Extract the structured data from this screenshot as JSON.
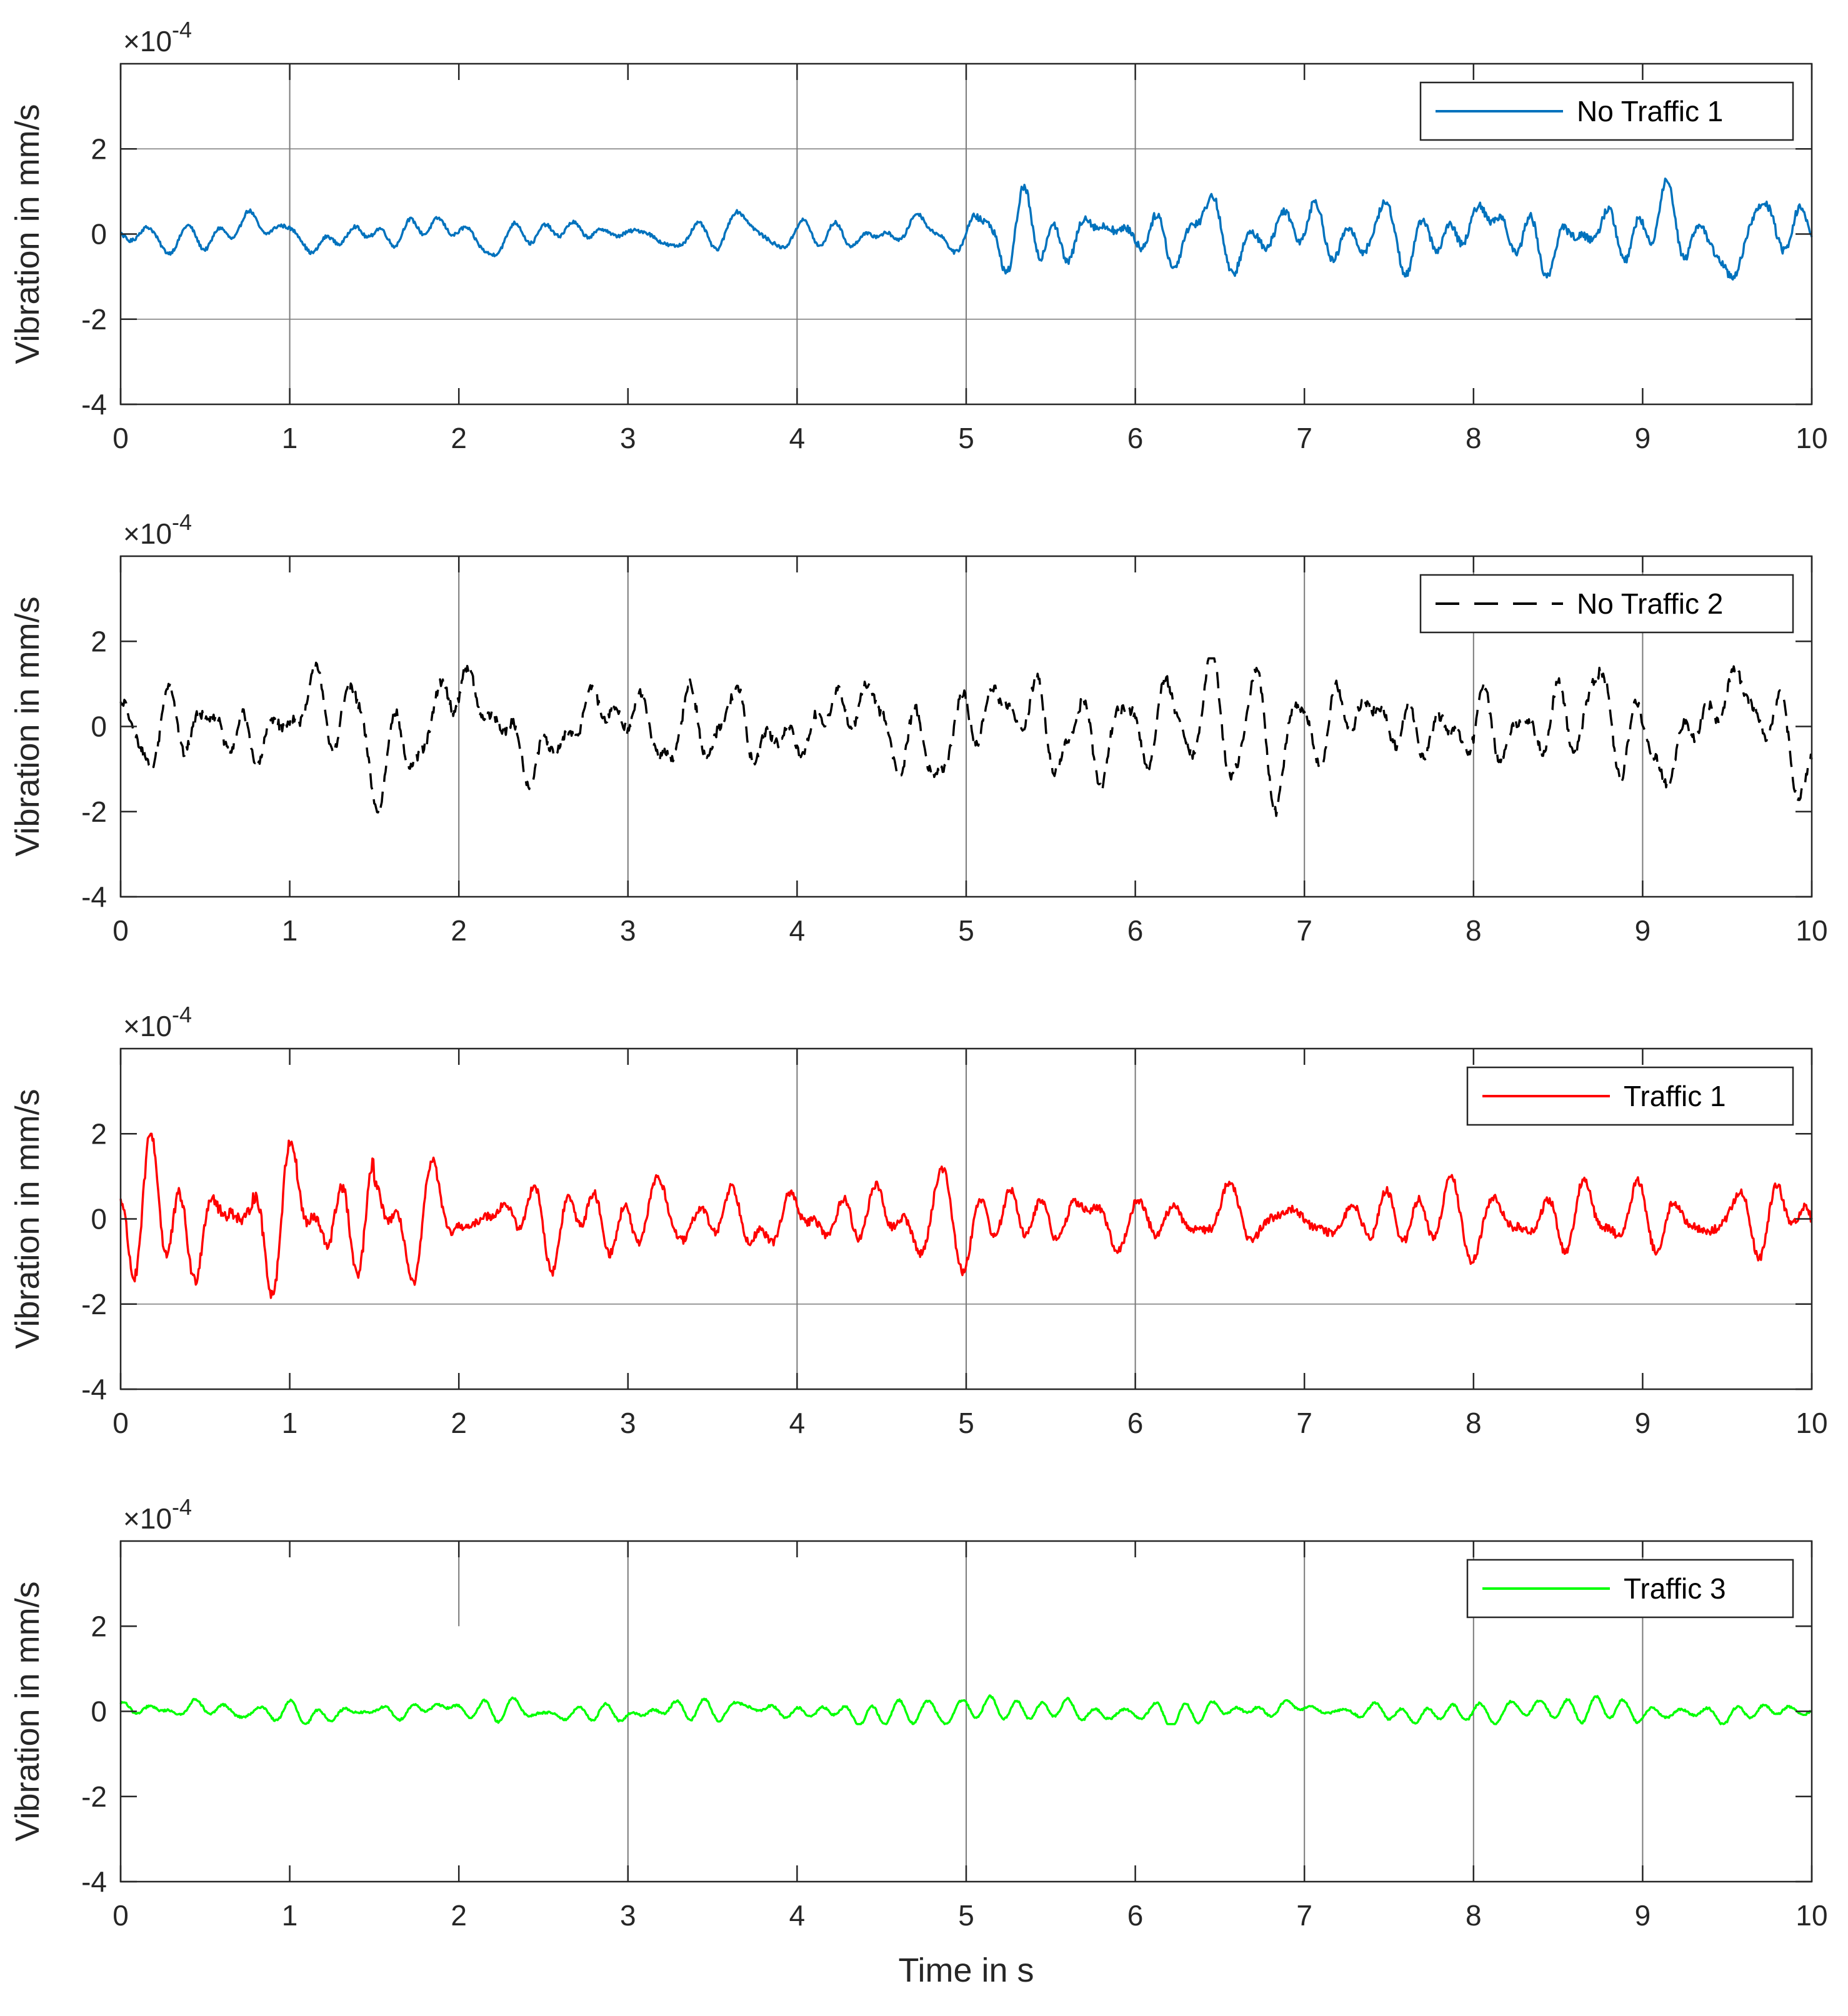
{
  "chart_data": [
    {
      "type": "line",
      "series": [
        {
          "name": "No Traffic 1",
          "color": "#0072BD",
          "style": "solid",
          "amplitude_range": [
            -1.1,
            1.3
          ],
          "segments": [
            [
              0,
              5,
              0.45
            ],
            [
              5,
              10,
              1.0
            ]
          ]
        }
      ],
      "xlim": [
        0,
        10
      ],
      "ylim": [
        -4,
        4
      ],
      "y_multiplier": "×10",
      "y_exponent": "-4",
      "xticks": [
        "0",
        "1",
        "2",
        "3",
        "4",
        "5",
        "6",
        "7",
        "8",
        "9",
        "10"
      ],
      "yticks": [
        "-4",
        "-2",
        "0",
        "2"
      ],
      "ylabel": "Vibration in mm/s",
      "xlabel": "",
      "hgrid": [
        -2,
        2
      ],
      "vgrid": [
        1,
        4,
        5,
        6
      ],
      "legend_position": "top-right"
    },
    {
      "type": "line",
      "series": [
        {
          "name": "No Traffic 2",
          "color": "#000000",
          "style": "dashed",
          "amplitude_range": [
            -2.1,
            1.6
          ],
          "segments": [
            [
              0,
              10,
              1.05
            ]
          ]
        }
      ],
      "xlim": [
        0,
        10
      ],
      "ylim": [
        -4,
        4
      ],
      "y_multiplier": "×10",
      "y_exponent": "-4",
      "xticks": [
        "0",
        "1",
        "2",
        "3",
        "4",
        "5",
        "6",
        "7",
        "8",
        "9",
        "10"
      ],
      "yticks": [
        "-4",
        "-2",
        "0",
        "2"
      ],
      "ylabel": "Vibration in mm/s",
      "xlabel": "",
      "hgrid": [],
      "vgrid": [
        2,
        3,
        5,
        7,
        8,
        9
      ],
      "legend_position": "top-right"
    },
    {
      "type": "line",
      "series": [
        {
          "name": "Traffic 1",
          "color": "#FF0000",
          "style": "solid",
          "amplitude_range": [
            -2.1,
            2.0
          ],
          "segments": [
            [
              0,
              1.5,
              1.3
            ],
            [
              1.5,
              10,
              0.85
            ]
          ]
        }
      ],
      "xlim": [
        0,
        10
      ],
      "ylim": [
        -4,
        4
      ],
      "y_multiplier": "×10",
      "y_exponent": "-4",
      "xticks": [
        "0",
        "1",
        "2",
        "3",
        "4",
        "5",
        "6",
        "7",
        "8",
        "9",
        "10"
      ],
      "yticks": [
        "-4",
        "-2",
        "0",
        "2"
      ],
      "ylabel": "Vibration in mm/s",
      "xlabel": "",
      "hgrid": [
        -2
      ],
      "vgrid": [
        4,
        5,
        6
      ],
      "legend_position": "top-right"
    },
    {
      "type": "line",
      "series": [
        {
          "name": "Traffic 3",
          "color": "#00FF00",
          "style": "solid",
          "amplitude_range": [
            -0.3,
            0.4
          ],
          "segments": [
            [
              0,
              10,
              0.18
            ]
          ]
        }
      ],
      "xlim": [
        0,
        10
      ],
      "ylim": [
        -4,
        4
      ],
      "y_multiplier": "×10",
      "y_exponent": "-4",
      "xticks": [
        "0",
        "1",
        "2",
        "3",
        "4",
        "5",
        "6",
        "7",
        "8",
        "9",
        "10"
      ],
      "yticks": [
        "-4",
        "-2",
        "0",
        "2"
      ],
      "ylabel": "Vibration in mm/s",
      "xlabel": "Time in s",
      "hgrid": [],
      "vgrid": [
        3,
        5,
        7,
        8,
        9
      ],
      "stub_grid": [
        2
      ],
      "legend_position": "top-right"
    }
  ]
}
